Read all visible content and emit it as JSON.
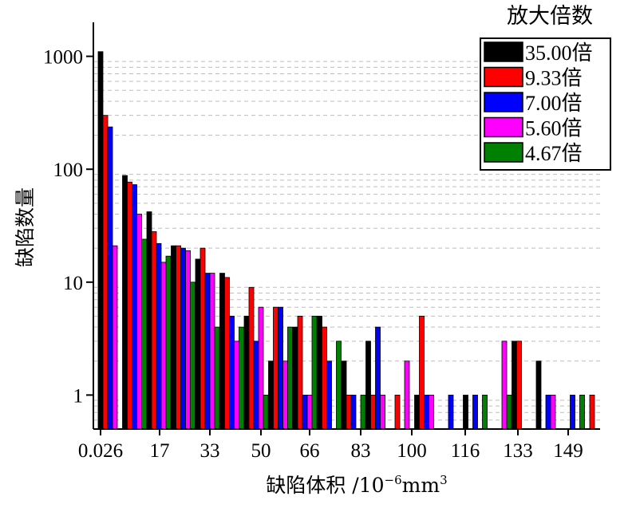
{
  "chart_data": {
    "type": "bar",
    "xlabel_main": "缺陷体积 /10",
    "xlabel_exp": "−6",
    "xlabel_unit": "mm",
    "xlabel_unit_exp": "3",
    "ylabel": "缺陷数量",
    "yscale": "log",
    "ylim": [
      0.5,
      2000
    ],
    "yticks": [
      1,
      10,
      100,
      1000
    ],
    "ytick_labels": [
      "1",
      "10",
      "100",
      "1000"
    ],
    "xtick_labels": [
      "0.026",
      "17",
      "33",
      "50",
      "66",
      "83",
      "100",
      "116",
      "133",
      "149"
    ],
    "grid": "horizontal-minor-dashed",
    "legend_title": "放大倍数",
    "legend_position": "top-right",
    "series": [
      {
        "name": "35.00倍",
        "color": "#000000",
        "values": [
          1100,
          88,
          42,
          21,
          16,
          12,
          5,
          2,
          4,
          5,
          2,
          3,
          0,
          1,
          0,
          1,
          0,
          3,
          2,
          0,
          0
        ]
      },
      {
        "name": "9.33倍",
        "color": "#ff0000",
        "values": [
          300,
          77,
          28,
          21,
          20,
          11,
          9,
          6,
          5,
          4,
          1,
          1,
          1,
          5,
          0,
          0,
          0,
          3,
          0,
          0,
          1
        ]
      },
      {
        "name": "7.00倍",
        "color": "#0000ff",
        "values": [
          237,
          73,
          22,
          20,
          12,
          5,
          3,
          6,
          1,
          2,
          1,
          4,
          0,
          1,
          1,
          1,
          0,
          0,
          1,
          1,
          0
        ]
      },
      {
        "name": "5.60倍",
        "color": "#ff00ff",
        "values": [
          21,
          40,
          15,
          19,
          12,
          3,
          6,
          2,
          1,
          0,
          0,
          1,
          2,
          1,
          0,
          0,
          3,
          0,
          1,
          0,
          0
        ]
      },
      {
        "name": "4.67倍",
        "color": "#008000",
        "values": [
          0,
          24,
          17,
          10,
          4,
          4,
          1,
          4,
          5,
          3,
          1,
          0,
          0,
          0,
          0,
          1,
          1,
          0,
          0,
          1,
          0
        ]
      }
    ]
  }
}
